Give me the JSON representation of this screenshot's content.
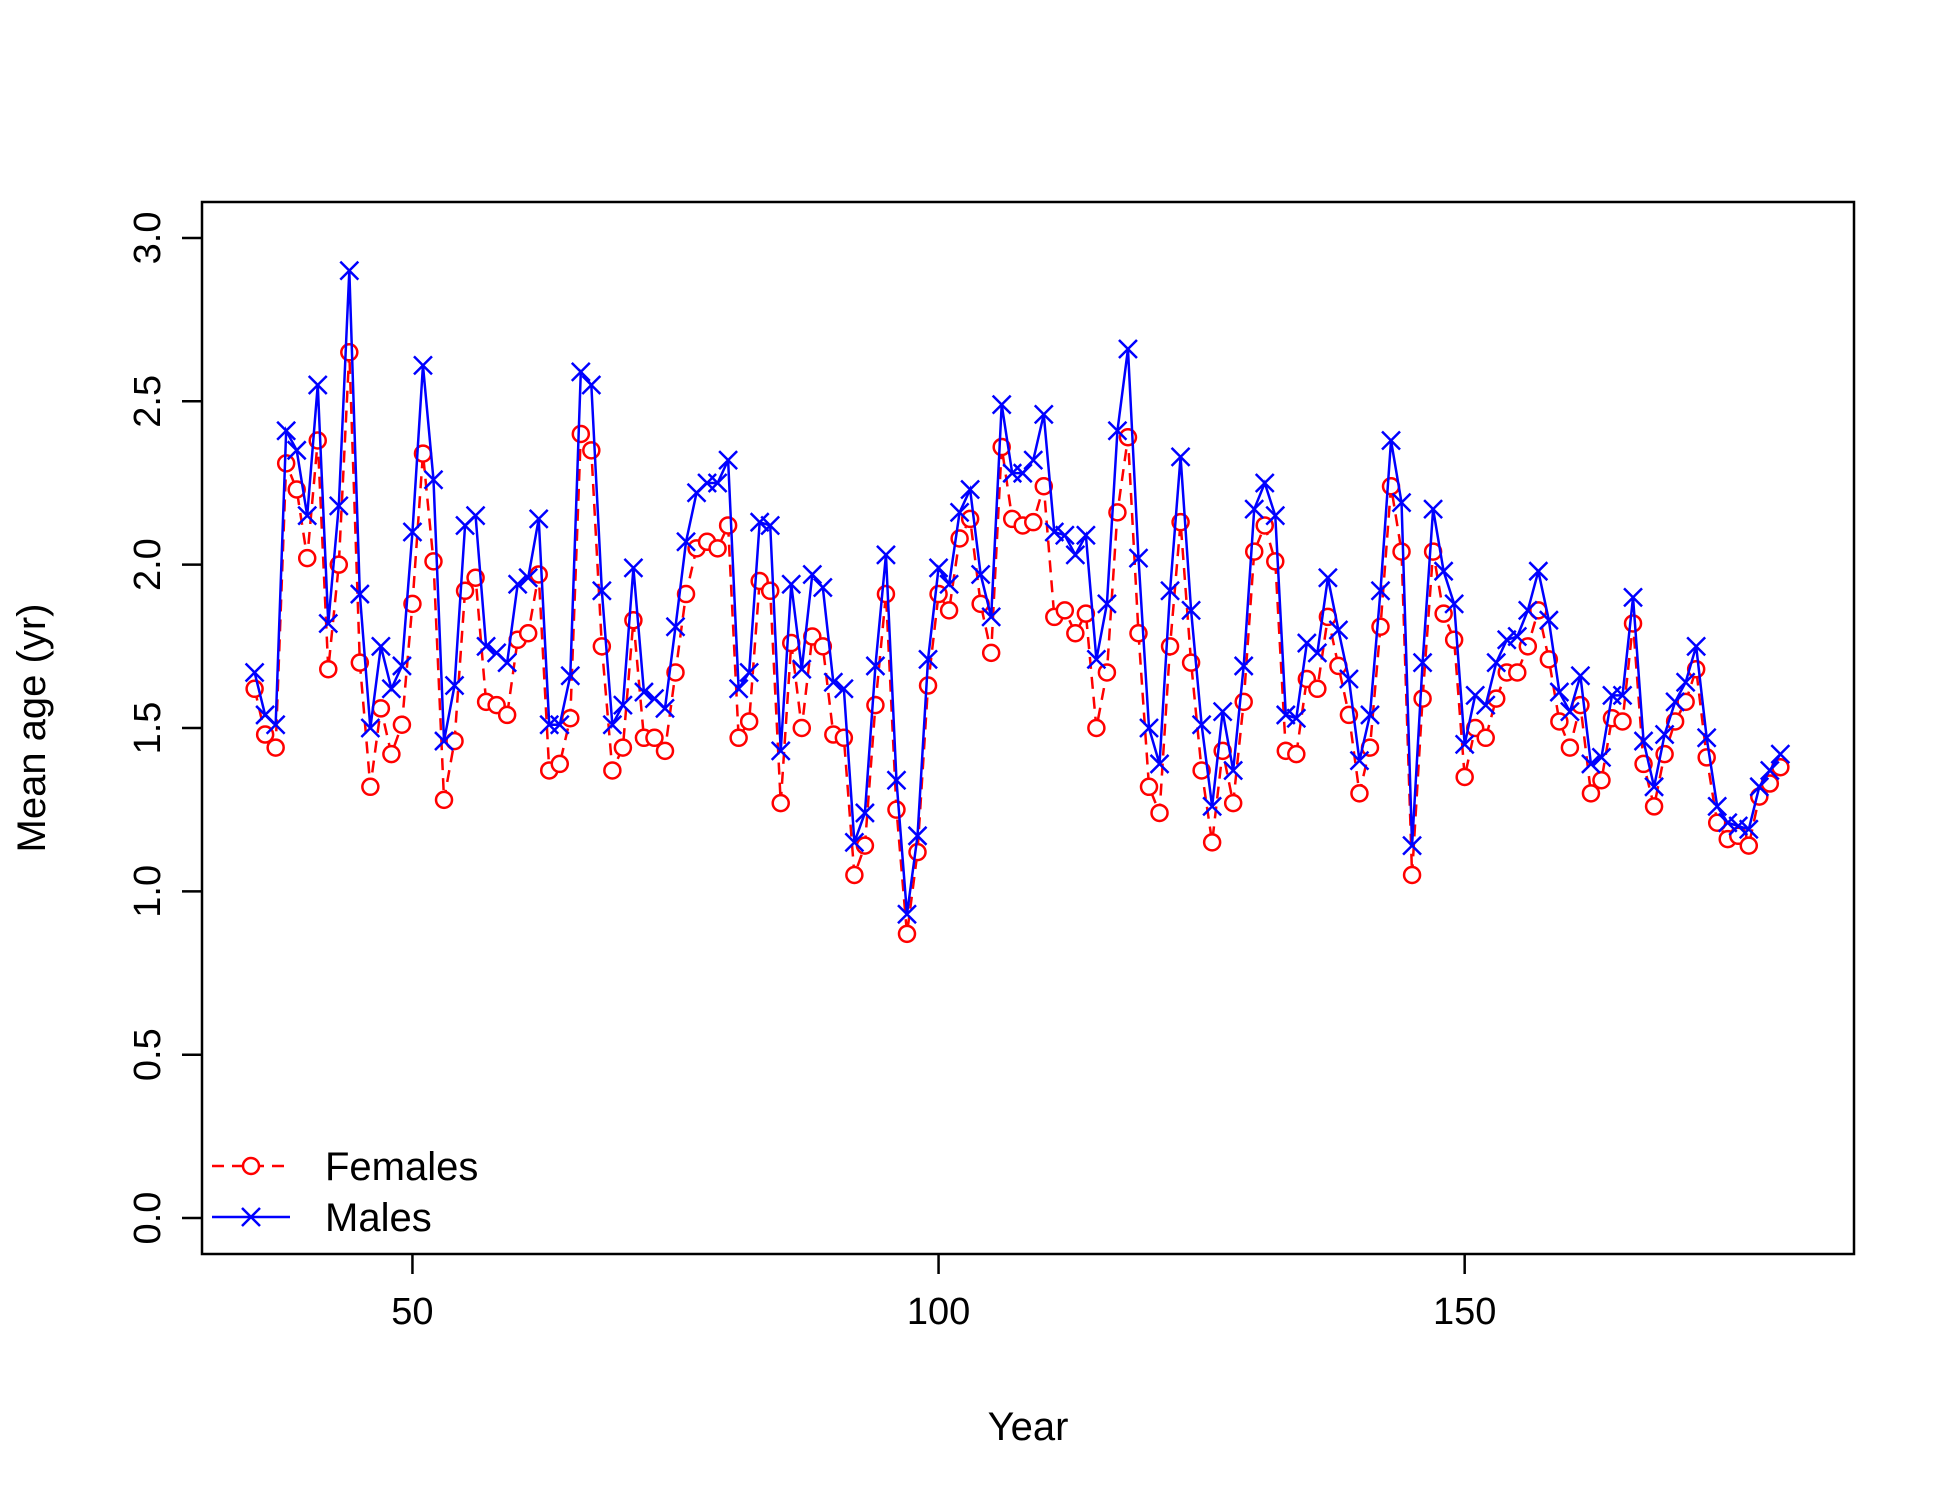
{
  "chart_data": {
    "type": "line",
    "title": "",
    "xlabel": "Year",
    "ylabel": "Mean age (yr)",
    "xlim": [
      30,
      187
    ],
    "ylim": [
      0,
      3
    ],
    "x_ticks": [
      50,
      100,
      150
    ],
    "x_tick_labels": [
      "50",
      "100",
      "150"
    ],
    "y_ticks": [
      0,
      0.5,
      1,
      1.5,
      2,
      2.5,
      3
    ],
    "y_tick_labels": [
      "0.0",
      "0.5",
      "1.0",
      "1.5",
      "2.0",
      "2.5",
      "3.0"
    ],
    "grid": false,
    "legend_position": "bottom-left",
    "x_start": 35,
    "x_step": 1,
    "series": [
      {
        "name": "Females",
        "color": "#ff0000",
        "line_style": "dashed",
        "marker": "circle",
        "values": [
          1.62,
          1.48,
          1.44,
          2.31,
          2.23,
          2.02,
          2.38,
          1.68,
          2.0,
          2.65,
          1.7,
          1.32,
          1.56,
          1.42,
          1.51,
          1.88,
          2.34,
          2.01,
          1.28,
          1.46,
          1.92,
          1.96,
          1.58,
          1.57,
          1.54,
          1.77,
          1.79,
          1.97,
          1.37,
          1.39,
          1.53,
          2.4,
          2.35,
          1.75,
          1.37,
          1.44,
          1.83,
          1.47,
          1.47,
          1.43,
          1.67,
          1.91,
          2.05,
          2.07,
          2.05,
          2.12,
          1.47,
          1.52,
          1.95,
          1.92,
          1.27,
          1.76,
          1.5,
          1.78,
          1.75,
          1.48,
          1.47,
          1.05,
          1.14,
          1.57,
          1.91,
          1.25,
          0.87,
          1.12,
          1.63,
          1.91,
          1.86,
          2.08,
          2.14,
          1.88,
          1.73,
          2.36,
          2.14,
          2.12,
          2.13,
          2.24,
          1.84,
          1.86,
          1.79,
          1.85,
          1.5,
          1.67,
          2.16,
          2.39,
          1.79,
          1.32,
          1.24,
          1.75,
          2.13,
          1.7,
          1.37,
          1.15,
          1.43,
          1.27,
          1.58,
          2.04,
          2.12,
          2.01,
          1.43,
          1.42,
          1.65,
          1.62,
          1.84,
          1.69,
          1.54,
          1.3,
          1.44,
          1.81,
          2.24,
          2.04,
          1.05,
          1.59,
          2.04,
          1.85,
          1.77,
          1.35,
          1.5,
          1.47,
          1.59,
          1.67,
          1.67,
          1.75,
          1.86,
          1.71,
          1.52,
          1.44,
          1.57,
          1.3,
          1.34,
          1.53,
          1.52,
          1.82,
          1.39,
          1.26,
          1.42,
          1.52,
          1.58,
          1.68,
          1.41,
          1.21,
          1.16,
          1.17,
          1.14,
          1.29,
          1.33,
          1.38
        ]
      },
      {
        "name": "Males",
        "color": "#0000ff",
        "line_style": "solid",
        "marker": "x",
        "values": [
          1.67,
          1.54,
          1.51,
          2.41,
          2.35,
          2.15,
          2.55,
          1.82,
          2.18,
          2.9,
          1.91,
          1.5,
          1.75,
          1.62,
          1.69,
          2.1,
          2.61,
          2.26,
          1.46,
          1.63,
          2.12,
          2.15,
          1.75,
          1.73,
          1.7,
          1.94,
          1.96,
          2.14,
          1.51,
          1.51,
          1.66,
          2.59,
          2.55,
          1.92,
          1.51,
          1.57,
          1.99,
          1.61,
          1.59,
          1.56,
          1.81,
          2.07,
          2.22,
          2.25,
          2.25,
          2.32,
          1.62,
          1.67,
          2.13,
          2.12,
          1.43,
          1.94,
          1.68,
          1.97,
          1.93,
          1.64,
          1.62,
          1.15,
          1.24,
          1.69,
          2.03,
          1.34,
          0.93,
          1.17,
          1.71,
          1.99,
          1.94,
          2.16,
          2.23,
          1.97,
          1.84,
          2.49,
          2.28,
          2.28,
          2.32,
          2.46,
          2.1,
          2.09,
          2.03,
          2.09,
          1.71,
          1.88,
          2.41,
          2.66,
          2.02,
          1.5,
          1.39,
          1.92,
          2.33,
          1.86,
          1.51,
          1.26,
          1.55,
          1.37,
          1.69,
          2.17,
          2.25,
          2.15,
          1.54,
          1.53,
          1.76,
          1.73,
          1.96,
          1.8,
          1.65,
          1.4,
          1.54,
          1.92,
          2.38,
          2.19,
          1.14,
          1.7,
          2.17,
          1.98,
          1.88,
          1.45,
          1.6,
          1.57,
          1.7,
          1.77,
          1.78,
          1.86,
          1.98,
          1.83,
          1.61,
          1.55,
          1.66,
          1.39,
          1.41,
          1.6,
          1.6,
          1.9,
          1.46,
          1.32,
          1.48,
          1.58,
          1.64,
          1.75,
          1.47,
          1.26,
          1.21,
          1.2,
          1.19,
          1.32,
          1.37,
          1.42
        ]
      }
    ]
  }
}
